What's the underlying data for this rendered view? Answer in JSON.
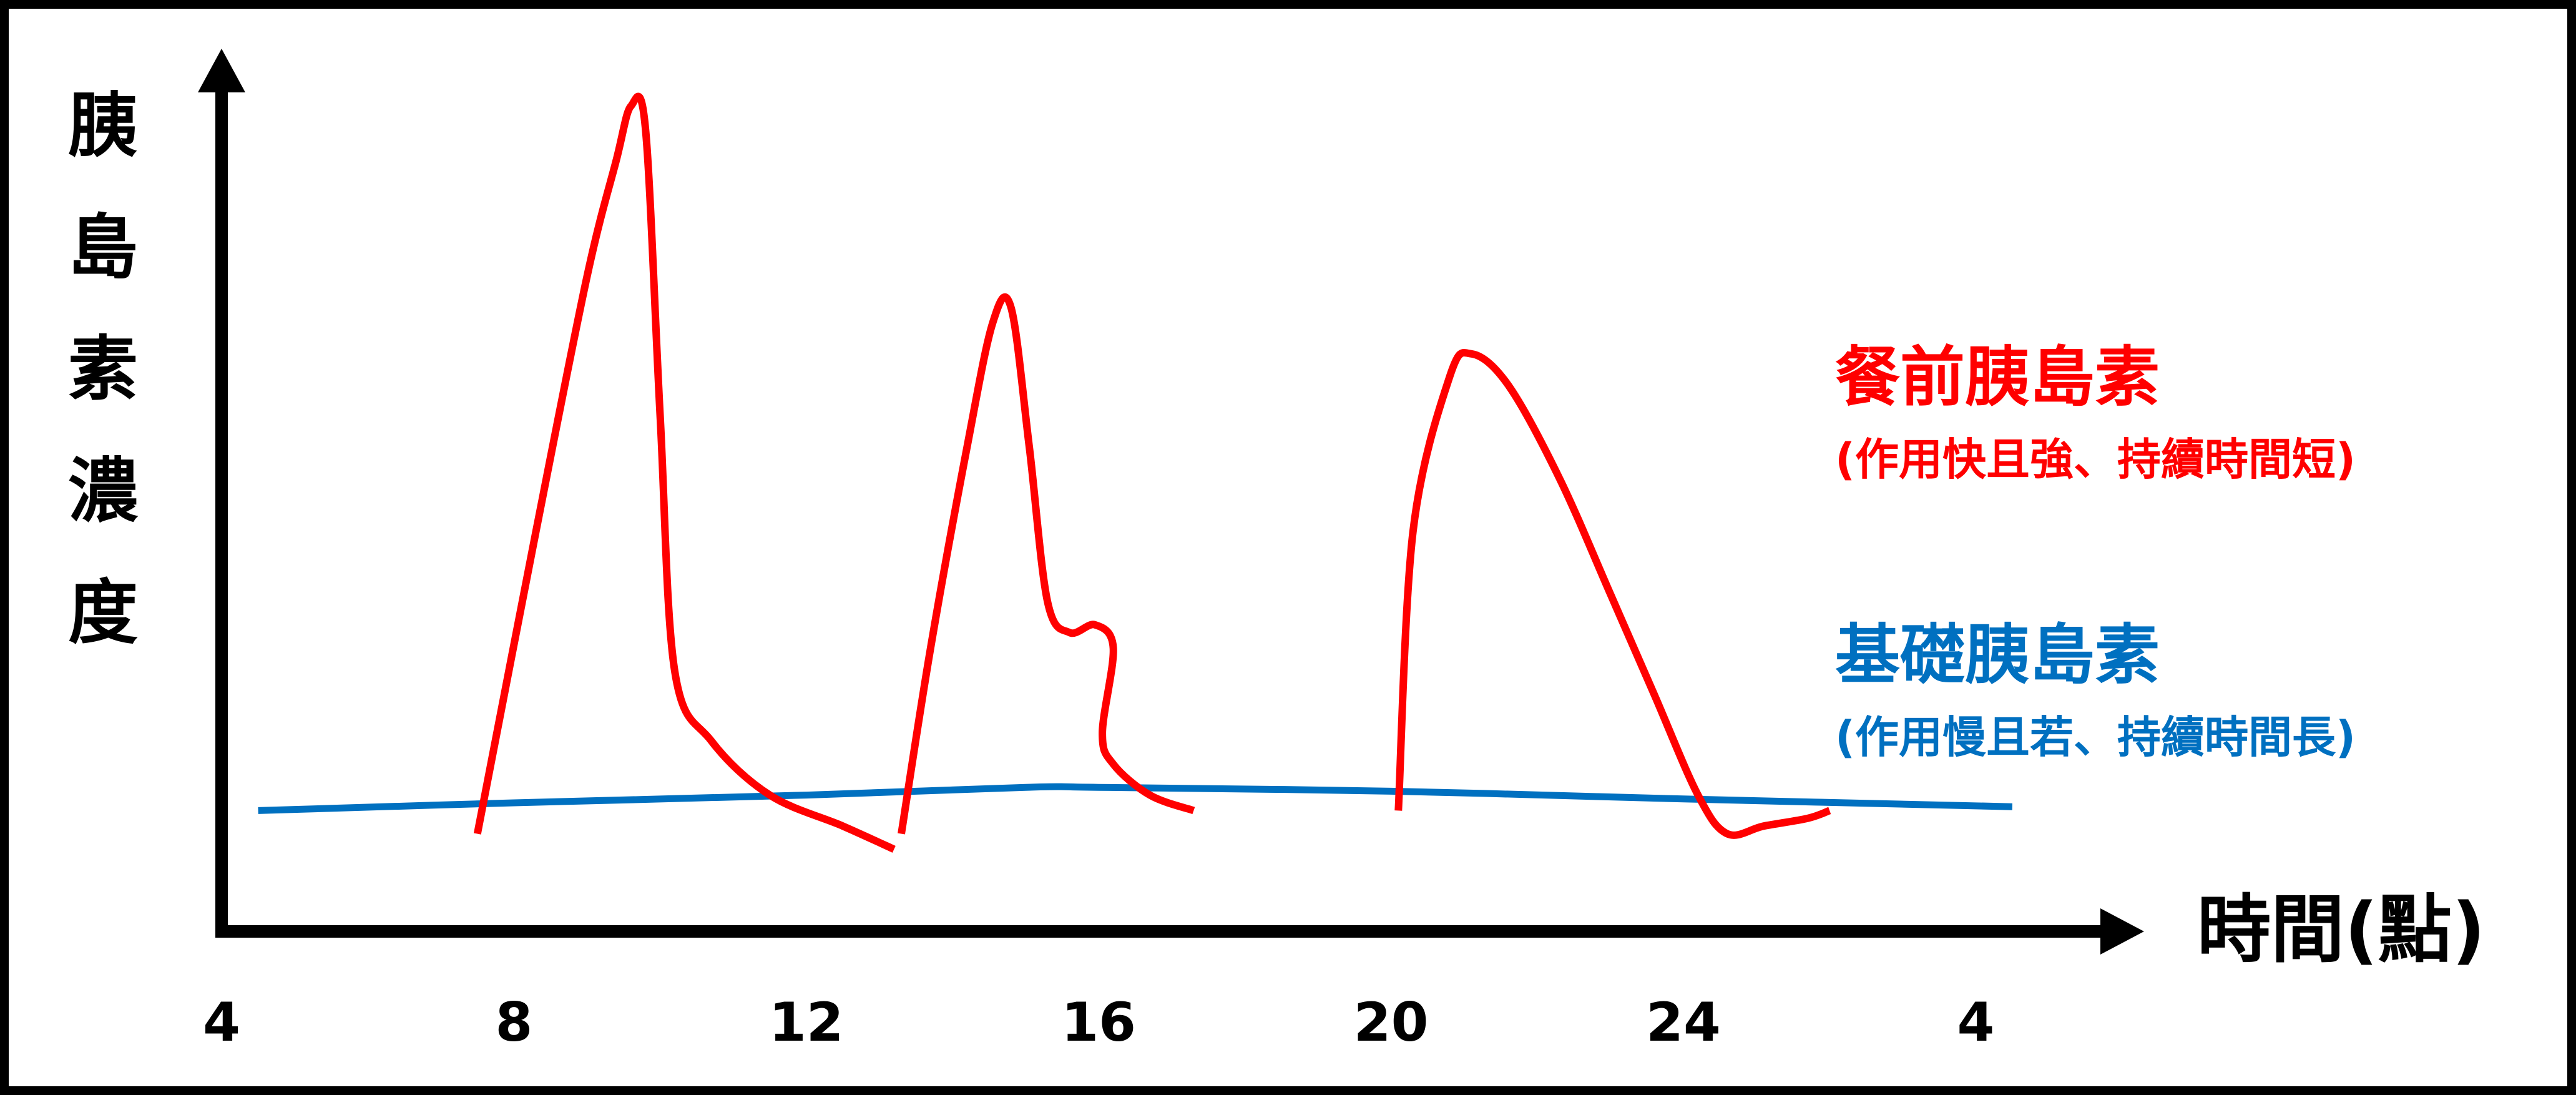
{
  "chart_data": {
    "type": "line",
    "ylabel": "胰島素濃度",
    "xlabel": "時間(點)",
    "x_ticks": [
      "4",
      "8",
      "12",
      "16",
      "20",
      "24",
      "4"
    ],
    "grid": false,
    "legend_placement": "right",
    "series": [
      {
        "name": "餐前胰島素",
        "subtitle": "(作用快且強、持續時間短)",
        "color": "#ff0000",
        "segments": [
          {
            "x": [
              7.5,
              8.3,
              9.0,
              9.4,
              9.6,
              9.8,
              10.0,
              10.2,
              10.7,
              11.5,
              12.5,
              13.2
            ],
            "y": [
              0.06,
              0.45,
              0.78,
              0.93,
              1.0,
              0.97,
              0.6,
              0.27,
              0.18,
              0.11,
              0.07,
              0.04
            ]
          },
          {
            "x": [
              13.3,
              13.7,
              14.2,
              14.55,
              14.8,
              15.05,
              15.3,
              15.6,
              15.95,
              16.2,
              16.05,
              16.2,
              16.7,
              17.3
            ],
            "y": [
              0.06,
              0.3,
              0.56,
              0.72,
              0.74,
              0.56,
              0.36,
              0.32,
              0.33,
              0.3,
              0.19,
              0.15,
              0.11,
              0.09
            ]
          },
          {
            "x": [
              20.1,
              20.3,
              20.8,
              21.1,
              21.6,
              22.3,
              23.0,
              23.6,
              24.2,
              24.6,
              25.1,
              25.7,
              26.0
            ],
            "y": [
              0.09,
              0.45,
              0.65,
              0.68,
              0.64,
              0.52,
              0.37,
              0.24,
              0.11,
              0.06,
              0.07,
              0.08,
              0.09
            ]
          }
        ]
      },
      {
        "name": "基礎胰島素",
        "subtitle": "(作用慢且若、持續時間長)",
        "color": "#0070c0",
        "segments": [
          {
            "x": [
              4.5,
              8,
              12,
              15,
              16,
              20,
              24,
              28.5
            ],
            "y": [
              0.09,
              0.1,
              0.11,
              0.12,
              0.12,
              0.115,
              0.105,
              0.095
            ]
          }
        ]
      }
    ]
  }
}
